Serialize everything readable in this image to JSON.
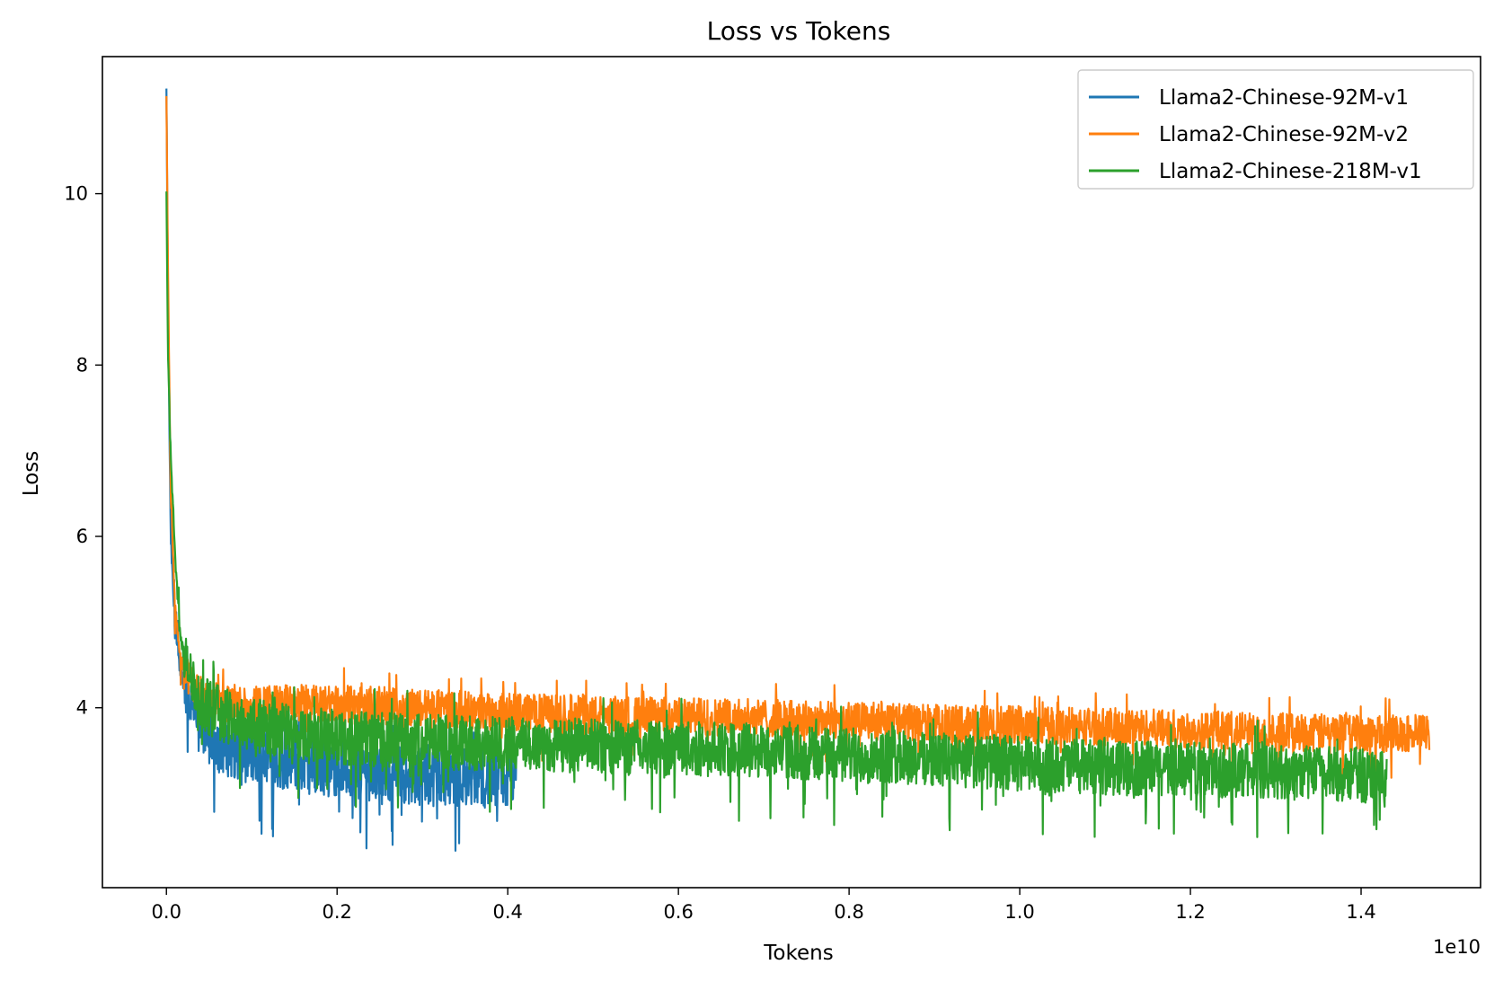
{
  "chart_data": {
    "type": "line",
    "title": "Loss vs Tokens",
    "xlabel": "Tokens",
    "ylabel": "Loss",
    "x_offset_label": "1e10",
    "xlim": [
      -0.075,
      1.54
    ],
    "ylim": [
      1.9,
      11.6
    ],
    "xticks": [
      0.0,
      0.2,
      0.4,
      0.6,
      0.8,
      1.0,
      1.2,
      1.4
    ],
    "xtick_labels": [
      "0.0",
      "0.2",
      "0.4",
      "0.6",
      "0.8",
      "1.0",
      "1.2",
      "1.4"
    ],
    "yticks": [
      4,
      6,
      8,
      10
    ],
    "ytick_labels": [
      "4",
      "6",
      "8",
      "10"
    ],
    "grid": false,
    "legend_position": "top-right",
    "series": [
      {
        "name": "Llama2-Chinese-92M-v1",
        "color": "#1f77b4",
        "x": [
          0.0,
          0.002,
          0.005,
          0.01,
          0.015,
          0.02,
          0.03,
          0.04,
          0.05,
          0.07,
          0.1,
          0.13,
          0.16,
          0.2,
          0.25,
          0.3,
          0.35,
          0.4,
          0.41
        ],
        "y": [
          11.2,
          8.6,
          6.0,
          4.9,
          4.5,
          4.3,
          4.0,
          3.85,
          3.7,
          3.55,
          3.45,
          3.4,
          3.35,
          3.3,
          3.25,
          3.2,
          3.2,
          3.15,
          3.25
        ],
        "noise": 0.35
      },
      {
        "name": "Llama2-Chinese-92M-v2",
        "color": "#ff7f0e",
        "x": [
          0.0,
          0.002,
          0.005,
          0.01,
          0.015,
          0.02,
          0.03,
          0.04,
          0.05,
          0.07,
          0.1,
          0.2,
          0.3,
          0.4,
          0.5,
          0.6,
          0.7,
          0.8,
          0.9,
          1.0,
          1.1,
          1.2,
          1.3,
          1.4,
          1.48
        ],
        "y": [
          11.1,
          9.0,
          6.5,
          5.2,
          4.7,
          4.45,
          4.25,
          4.15,
          4.1,
          4.05,
          4.05,
          4.05,
          4.0,
          3.95,
          3.92,
          3.9,
          3.88,
          3.85,
          3.82,
          3.8,
          3.78,
          3.75,
          3.72,
          3.7,
          3.7
        ],
        "noise": 0.22
      },
      {
        "name": "Llama2-Chinese-218M-v1",
        "color": "#2ca02c",
        "x": [
          0.0,
          0.002,
          0.005,
          0.01,
          0.015,
          0.02,
          0.03,
          0.04,
          0.05,
          0.07,
          0.1,
          0.2,
          0.3,
          0.4,
          0.5,
          0.6,
          0.7,
          0.8,
          0.9,
          1.0,
          1.1,
          1.2,
          1.3,
          1.4,
          1.43
        ],
        "y": [
          10.0,
          8.0,
          7.0,
          5.8,
          5.0,
          4.6,
          4.3,
          4.1,
          4.0,
          3.9,
          3.8,
          3.65,
          3.6,
          3.58,
          3.55,
          3.52,
          3.5,
          3.45,
          3.4,
          3.35,
          3.3,
          3.28,
          3.25,
          3.22,
          3.2
        ],
        "noise": 0.32
      }
    ]
  }
}
